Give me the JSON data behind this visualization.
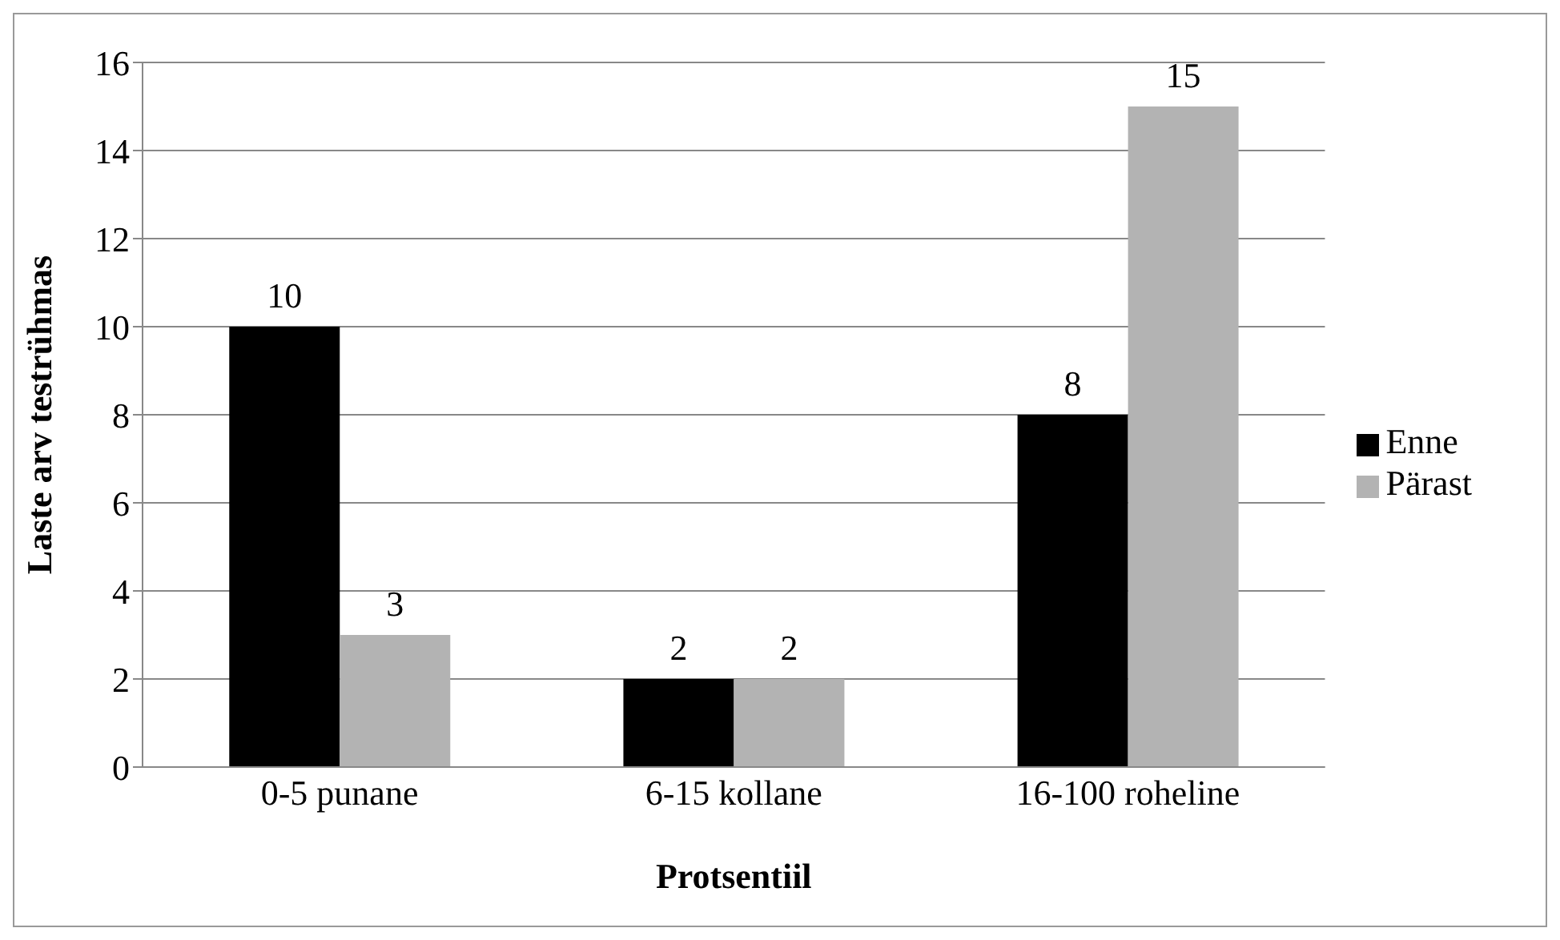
{
  "chart_data": {
    "type": "bar",
    "xlabel": "Protsentiil",
    "ylabel": "Laste arv testrühmas",
    "categories": [
      "0-5 punane",
      "6-15 kollane",
      "16-100 roheline"
    ],
    "series": [
      {
        "name": "Enne",
        "color": "#000000",
        "values": [
          10,
          2,
          8
        ]
      },
      {
        "name": "Pärast",
        "color": "#b3b3b3",
        "values": [
          3,
          2,
          15
        ]
      }
    ],
    "ylim": [
      0,
      16
    ],
    "yticks": [
      0,
      2,
      4,
      6,
      8,
      10,
      12,
      14,
      16
    ],
    "grid": "y",
    "legend": "right",
    "data_labels": true
  }
}
